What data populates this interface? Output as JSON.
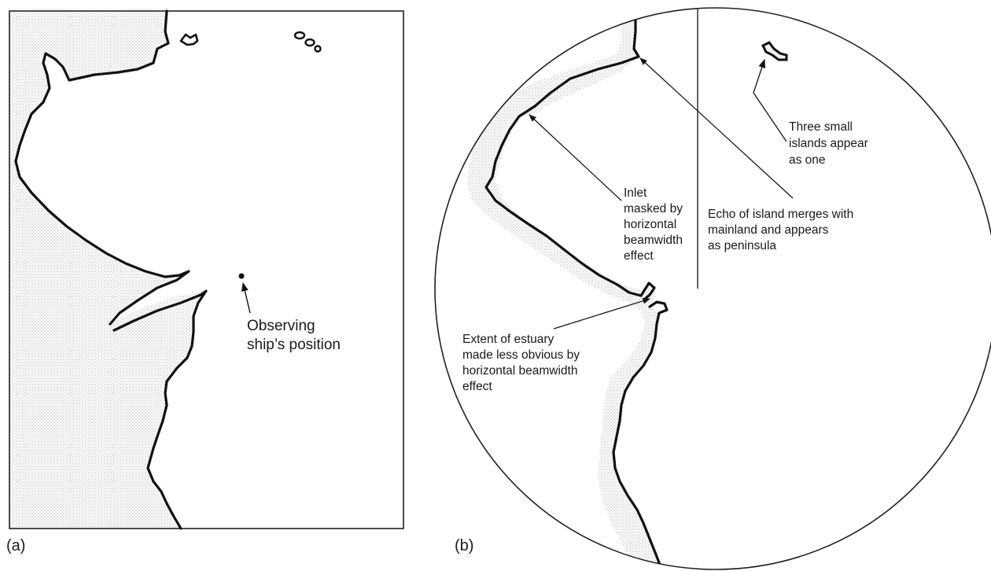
{
  "panels": {
    "a": {
      "label": "(a)"
    },
    "b": {
      "label": "(b)"
    }
  },
  "annotations": {
    "observing_ship": [
      "Observing",
      "ship’s position"
    ],
    "three_islands": [
      "Three small",
      "islands appear",
      "as one"
    ],
    "inlet_masked": [
      "Inlet",
      "masked by",
      "horizontal",
      "beamwidth",
      "effect"
    ],
    "island_merges": [
      "Echo of island merges with",
      "mainland and appears",
      "as peninsula"
    ],
    "estuary": [
      "Extent of estuary",
      "made less obvious by",
      "horizontal beamwidth",
      "effect"
    ]
  },
  "colors": {
    "line": "#111111",
    "land_stipple": "#c8c8c8",
    "text": "#1a1a1a"
  }
}
